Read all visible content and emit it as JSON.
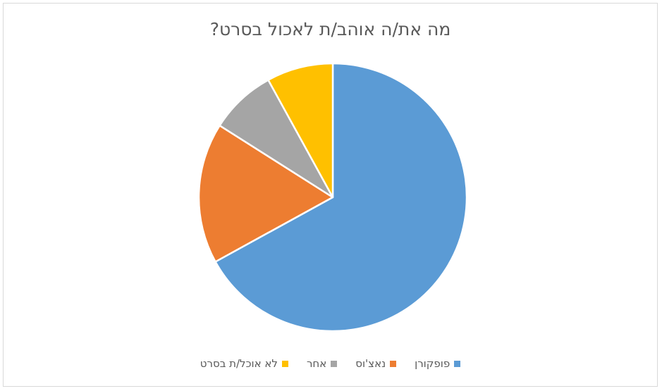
{
  "chart_data": {
    "type": "pie",
    "title": "מה את/ה אוהב/ת לאכול בסרט?",
    "categories": [
      "פופקורן",
      "נאצ'וס",
      "אחר",
      "לא אוכל/ת בסרט"
    ],
    "values": [
      67,
      17,
      8,
      8
    ],
    "colors": [
      "#5b9bd5",
      "#ed7d31",
      "#a5a5a5",
      "#ffc000"
    ],
    "legend_position": "bottom"
  }
}
